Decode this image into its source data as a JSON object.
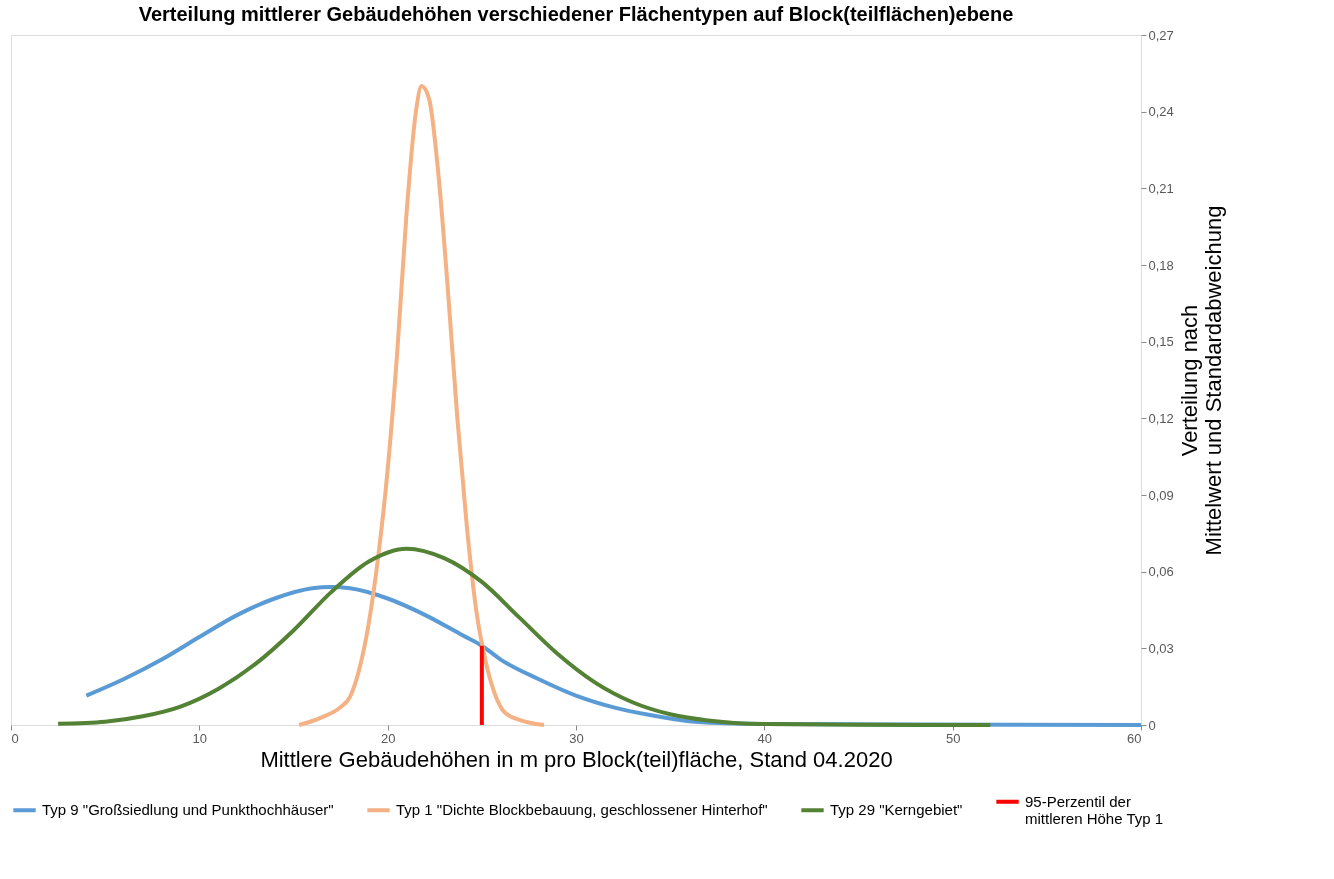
{
  "chart_data": {
    "type": "line",
    "title": "Verteilung mittlerer Gebäudehöhen verschiedener Flächentypen auf Block(teilflächen)ebene",
    "xlabel": "Mittlere Gebäudehöhen in m pro Block(teil)fläche, Stand 04.2020",
    "ylabel": "Verteilung nach\nMittelwert und Standardabweichung",
    "xlim": [
      0,
      60
    ],
    "xticks": [
      0,
      10,
      20,
      30,
      40,
      50,
      60
    ],
    "ylim": [
      0,
      0.27
    ],
    "yticks": [
      0,
      {
        "value": 0.03,
        "label": "0,03"
      },
      {
        "value": 0.06,
        "label": "0,06"
      },
      {
        "value": 0.09,
        "label": "0,09"
      },
      {
        "value": 0.12,
        "label": "0,12"
      },
      {
        "value": 0.15,
        "label": "0,15"
      },
      {
        "value": 0.18,
        "label": "0,18"
      },
      {
        "value": 0.21,
        "label": "0,21"
      },
      {
        "value": 0.24,
        "label": "0,24"
      },
      {
        "value": 0.27,
        "label": "0,27"
      }
    ],
    "grid": false,
    "legend": "bottom",
    "marker": "none",
    "line_style": "solid",
    "series": [
      {
        "name": "Typ 9 \"Großsiedlung und Punkthochhäuser\"",
        "color": "#5b9bd5",
        "x": [
          4,
          6,
          8,
          10,
          12,
          14,
          16,
          17,
          18,
          20,
          22,
          24,
          25,
          26,
          28,
          30,
          32,
          34,
          36,
          38,
          40,
          60
        ],
        "values": [
          0.0115,
          0.018,
          0.0256,
          0.0344,
          0.043,
          0.0495,
          0.0535,
          0.054,
          0.0535,
          0.0495,
          0.043,
          0.035,
          0.031,
          0.0256,
          0.018,
          0.0115,
          0.0069,
          0.0038,
          0.0015,
          0.0007,
          0.0004,
          0
        ]
      },
      {
        "name": "Typ 1 \"Dichte Blockbebauung, geschlossener Hinterhof\"",
        "color": "#f4b183",
        "x": [
          15.3,
          16.5,
          17.5,
          18,
          18.5,
          19,
          19.5,
          20,
          20.5,
          21,
          21.5,
          21.8,
          22.2,
          22.7,
          23.2,
          23.7,
          24.2,
          24.7,
          25.2,
          25.7,
          26.2,
          27,
          28.3
        ],
        "values": [
          0,
          0.003,
          0.007,
          0.011,
          0.022,
          0.04,
          0.066,
          0.1,
          0.145,
          0.2,
          0.24,
          0.25,
          0.245,
          0.215,
          0.17,
          0.12,
          0.078,
          0.045,
          0.025,
          0.012,
          0.005,
          0.002,
          0
        ]
      },
      {
        "name": "Typ 29 \"Kerngebiet\"",
        "color": "#548235",
        "x": [
          2.5,
          5,
          7,
          9,
          11,
          13,
          15,
          17,
          19,
          21,
          23,
          25,
          27,
          29,
          31,
          33,
          35,
          37,
          40,
          45,
          52
        ],
        "values": [
          0.0005,
          0.0013,
          0.0034,
          0.0072,
          0.0141,
          0.024,
          0.037,
          0.052,
          0.064,
          0.069,
          0.0653,
          0.056,
          0.042,
          0.028,
          0.0167,
          0.0089,
          0.0042,
          0.0018,
          0.0004,
          0.0001,
          0
        ]
      },
      {
        "name": "95-Perzentil der\nmittleren Höhe Typ 1",
        "color": "#ff0000",
        "x": [
          25,
          25
        ],
        "values": [
          0,
          0.031
        ]
      }
    ]
  }
}
